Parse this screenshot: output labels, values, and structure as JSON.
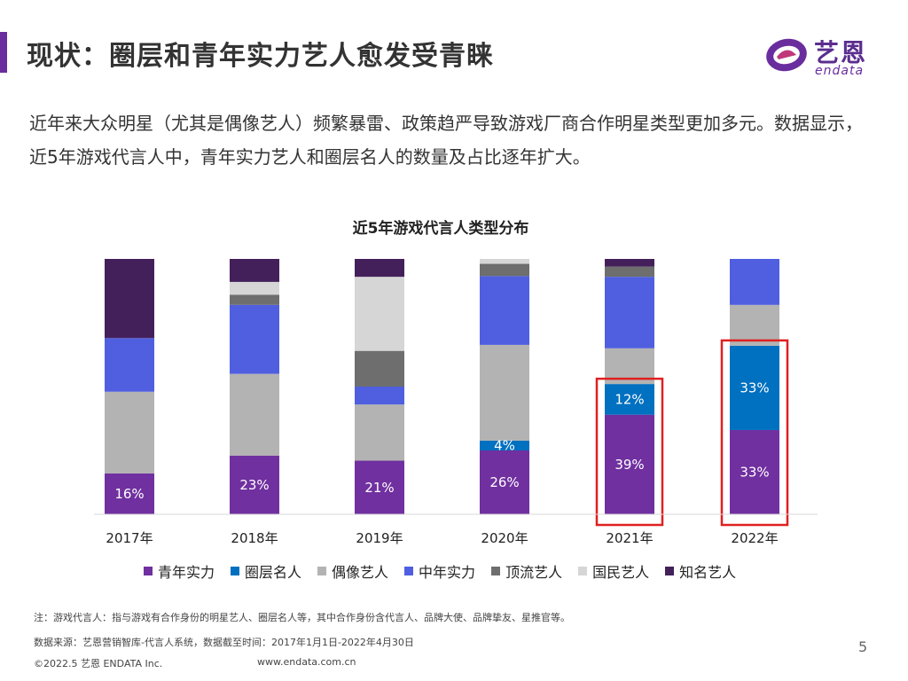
{
  "header": {
    "title": "现状：圈层和青年实力艺人愈发受青睐",
    "logo_cn": "艺恩",
    "logo_en": "endata"
  },
  "description": "近年来大众明星（尤其是偶像艺人）频繁暴雷、政策趋严导致游戏厂商合作明星类型更加多元。数据显示，近5年游戏代言人中，青年实力艺人和圈层名人的数量及占比逐年扩大。",
  "chart_data": {
    "type": "bar",
    "stacked": true,
    "percent_stacked": true,
    "title": "近5年游戏代言人类型分布",
    "categories": [
      "2017年",
      "2018年",
      "2019年",
      "2020年",
      "2021年",
      "2022年"
    ],
    "series": [
      {
        "name": "青年实力",
        "color": "#7030a0",
        "values": [
          16,
          23,
          21,
          26,
          39,
          33
        ]
      },
      {
        "name": "圈层名人",
        "color": "#0070c0",
        "values": [
          0,
          0,
          0,
          4,
          12,
          33
        ]
      },
      {
        "name": "偶像艺人",
        "color": "#b3b3b3",
        "values": [
          32,
          32,
          22,
          39,
          14,
          16
        ]
      },
      {
        "name": "中年实力",
        "color": "#4f5fe0",
        "values": [
          21,
          27,
          7,
          28,
          28,
          18
        ]
      },
      {
        "name": "顶流艺人",
        "color": "#6e6e6e",
        "values": [
          0,
          4,
          14,
          5,
          4,
          0
        ]
      },
      {
        "name": "国民艺人",
        "color": "#d6d6d6",
        "values": [
          0,
          5,
          29,
          2,
          0,
          0
        ]
      },
      {
        "name": "知名艺人",
        "color": "#44205b",
        "values": [
          31,
          9,
          7,
          0,
          3,
          0
        ]
      }
    ],
    "labels": [
      {
        "category_index": 0,
        "series_index": 0,
        "text": "16%"
      },
      {
        "category_index": 1,
        "series_index": 0,
        "text": "23%"
      },
      {
        "category_index": 2,
        "series_index": 0,
        "text": "21%"
      },
      {
        "category_index": 3,
        "series_index": 0,
        "text": "26%"
      },
      {
        "category_index": 3,
        "series_index": 1,
        "text": "4%"
      },
      {
        "category_index": 4,
        "series_index": 0,
        "text": "39%"
      },
      {
        "category_index": 4,
        "series_index": 1,
        "text": "12%"
      },
      {
        "category_index": 5,
        "series_index": 0,
        "text": "33%"
      },
      {
        "category_index": 5,
        "series_index": 1,
        "text": "33%"
      }
    ],
    "highlighted_categories": [
      4,
      5
    ],
    "highlight_color": "#e02020",
    "ylim": [
      0,
      100
    ]
  },
  "footer": {
    "note": "注：游戏代言人：指与游戏有合作身份的明星艺人、圈层名人等，其中合作身份含代言人、品牌大使、品牌挚友、星推官等。",
    "source": "数据来源：艺恩营销智库-代言人系统，数据截至时间：2017年1月1日-2022年4月30日",
    "copyright": "©2022.5 艺恩 ENDATA Inc.",
    "website": "www.endata.com.cn",
    "page_number": "5"
  }
}
